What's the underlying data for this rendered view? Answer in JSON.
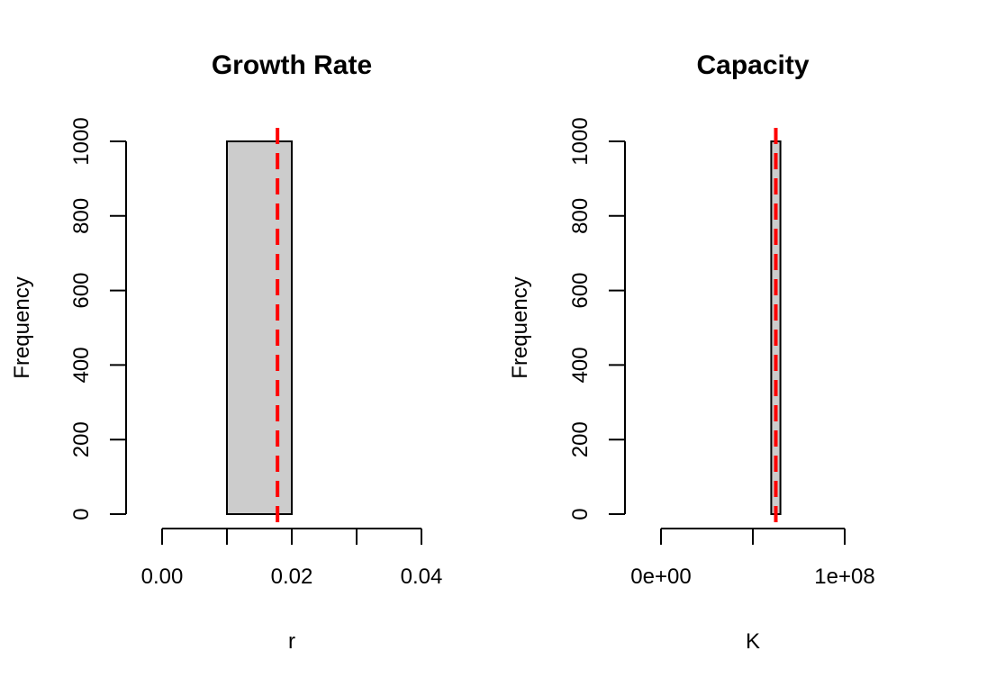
{
  "chart_data": [
    {
      "type": "bar",
      "title": "Growth Rate",
      "xlabel": "r",
      "ylabel": "Frequency",
      "xlim": [
        0,
        0.04
      ],
      "ylim": [
        0,
        1000
      ],
      "x_ticks": [
        {
          "value": 0.0,
          "label": "0.00"
        },
        {
          "value": 0.01,
          "label": ""
        },
        {
          "value": 0.02,
          "label": "0.02"
        },
        {
          "value": 0.03,
          "label": ""
        },
        {
          "value": 0.04,
          "label": "0.04"
        }
      ],
      "y_ticks": [
        {
          "value": 0,
          "label": "0"
        },
        {
          "value": 200,
          "label": "200"
        },
        {
          "value": 400,
          "label": "400"
        },
        {
          "value": 600,
          "label": "600"
        },
        {
          "value": 800,
          "label": "800"
        },
        {
          "value": 1000,
          "label": "1000"
        }
      ],
      "bins": [
        {
          "x0": 0.01,
          "x1": 0.02,
          "count": 1000
        }
      ],
      "reference_line": {
        "x": 0.0178,
        "color": "#ff0000",
        "style": "dashed"
      },
      "bar_color": "#cccccc"
    },
    {
      "type": "bar",
      "title": "Capacity",
      "xlabel": "K",
      "ylabel": "Frequency",
      "xlim": [
        0,
        100000000
      ],
      "ylim": [
        0,
        1000
      ],
      "x_ticks": [
        {
          "value": 0,
          "label": "0e+00"
        },
        {
          "value": 50000000,
          "label": ""
        },
        {
          "value": 100000000,
          "label": "1e+08"
        }
      ],
      "y_ticks": [
        {
          "value": 0,
          "label": "0"
        },
        {
          "value": 200,
          "label": "200"
        },
        {
          "value": 400,
          "label": "400"
        },
        {
          "value": 600,
          "label": "600"
        },
        {
          "value": 800,
          "label": "800"
        },
        {
          "value": 1000,
          "label": "1000"
        }
      ],
      "bins": [
        {
          "x0": 60000000,
          "x1": 65000000,
          "count": 1000
        }
      ],
      "reference_line": {
        "x": 62500000,
        "color": "#ff0000",
        "style": "dashed"
      },
      "bar_color": "#cccccc"
    }
  ]
}
